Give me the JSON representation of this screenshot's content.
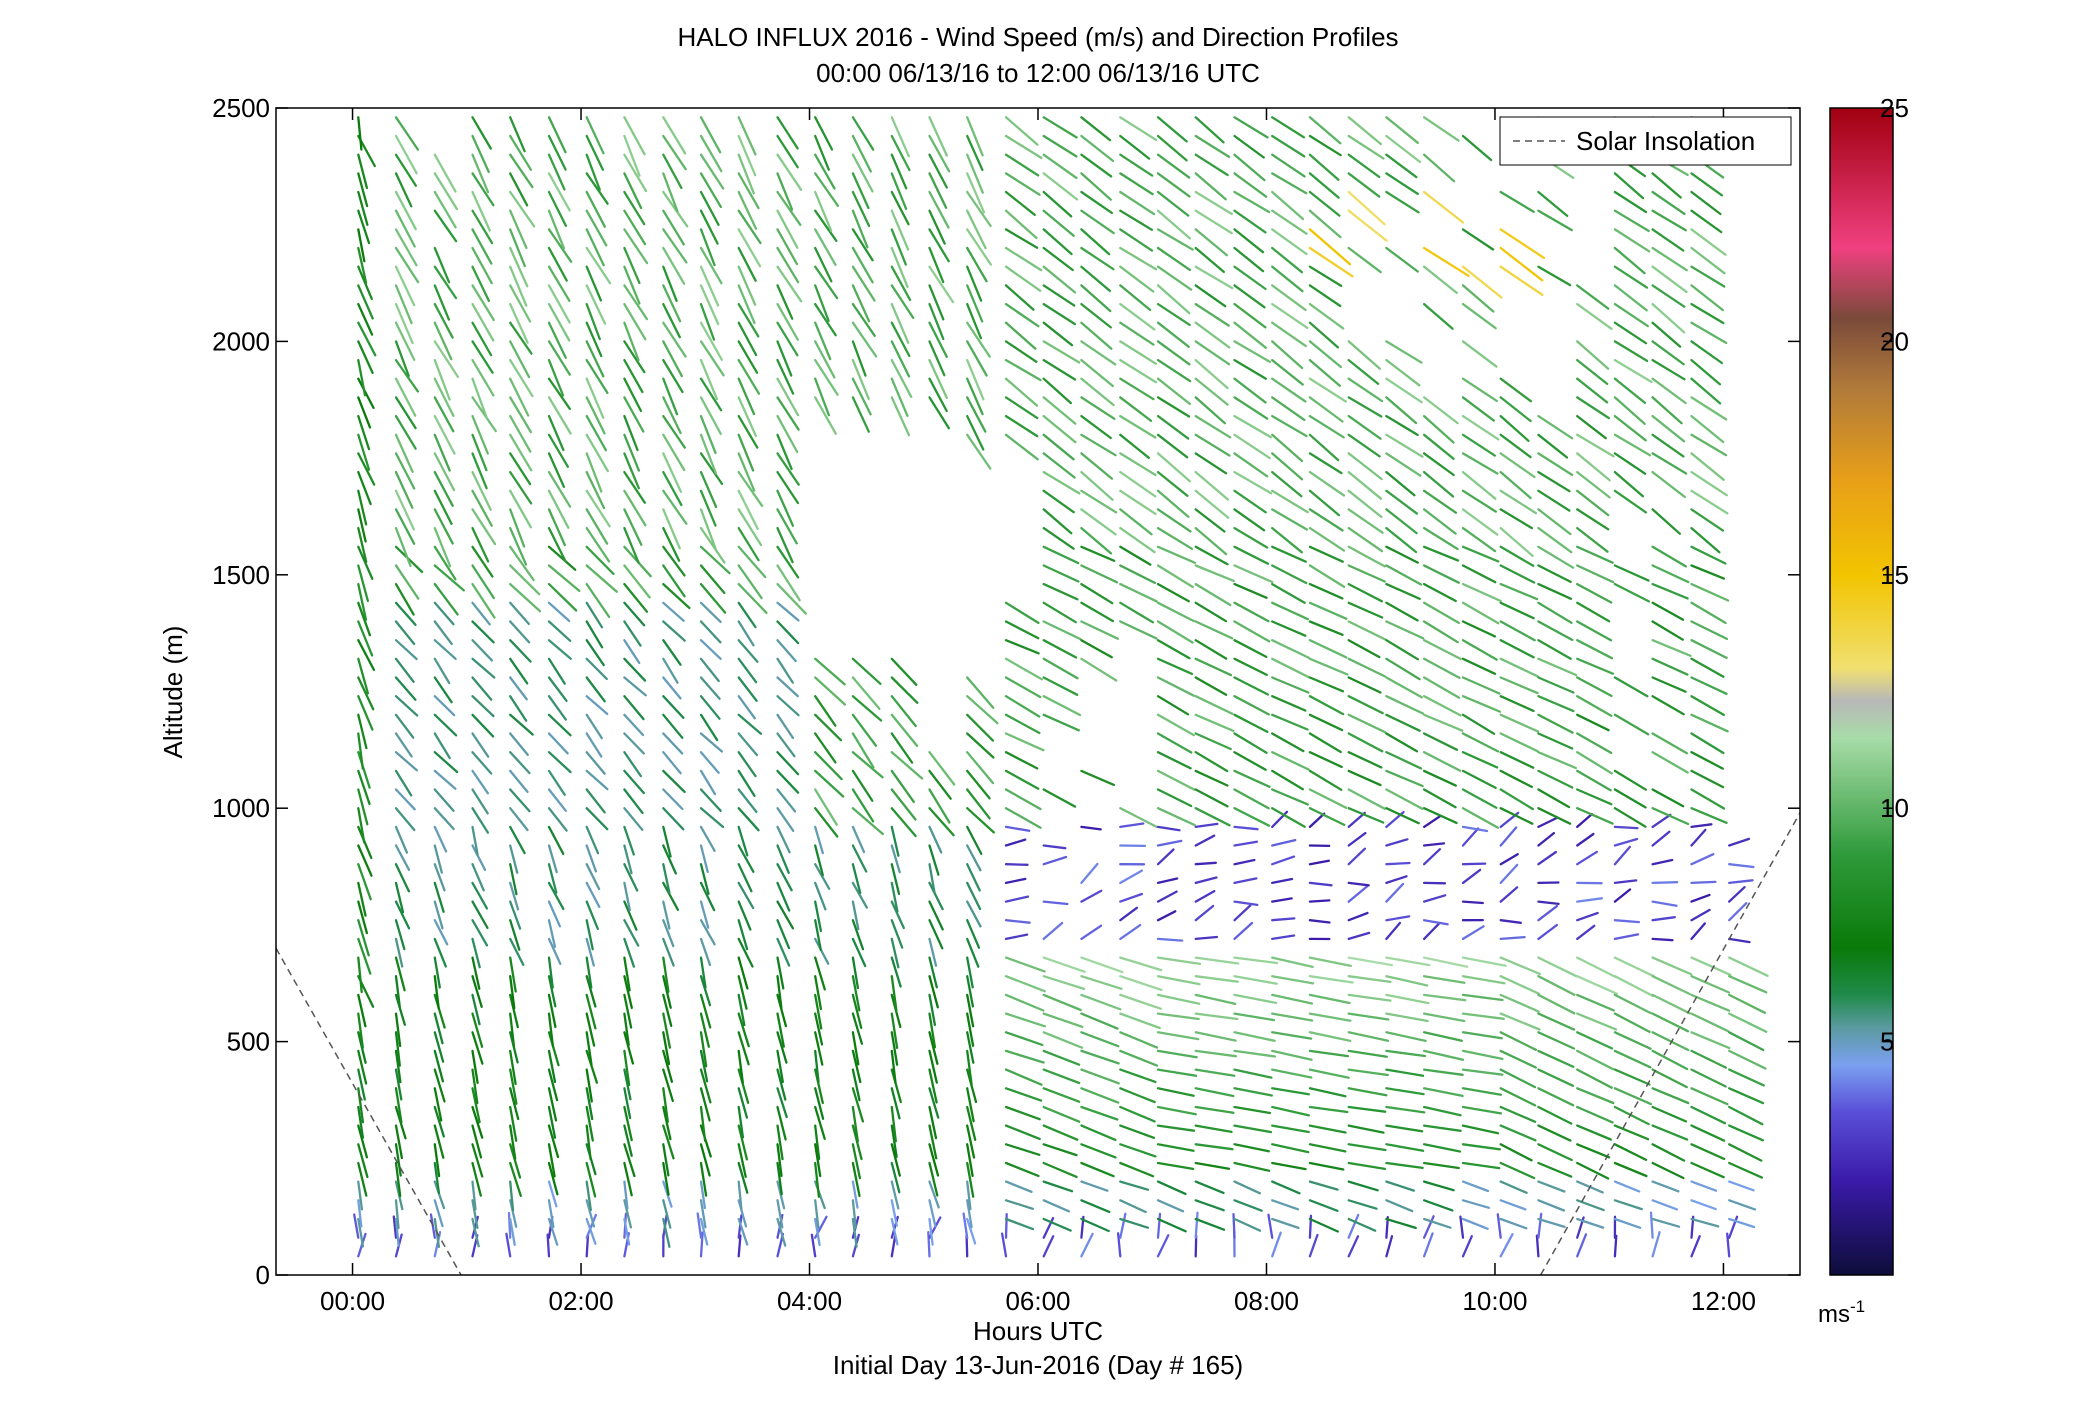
{
  "chart_data": {
    "type": "wind-barb",
    "title": "HALO INFLUX 2016 - Wind Speed (m/s) and Direction Profiles",
    "subtitle": "00:00 06/13/16 to 12:00 06/13/16  UTC",
    "xlabel": "Hours UTC",
    "xlabel2": "Initial Day 13-Jun-2016 (Day # 165)",
    "ylabel": "Altitude (m)",
    "xlim": [
      -0.67,
      12.67
    ],
    "ylim": [
      0,
      2500
    ],
    "x_ticks": [
      0,
      2,
      4,
      6,
      8,
      10,
      12
    ],
    "x_tick_labels": [
      "00:00",
      "02:00",
      "04:00",
      "06:00",
      "08:00",
      "10:00",
      "12:00"
    ],
    "y_ticks": [
      0,
      500,
      1000,
      1500,
      2000,
      2500
    ],
    "y_tick_labels": [
      "0",
      "500",
      "1000",
      "1500",
      "2000",
      "2500"
    ],
    "colorbar": {
      "min": 0,
      "max": 25,
      "ticks": [
        5,
        10,
        15,
        20,
        25
      ],
      "tick_labels": [
        "5",
        "10",
        "15",
        "20",
        "25"
      ],
      "unit_base": "ms",
      "unit_exp": "-1",
      "stops": [
        {
          "v": 0,
          "color": "#0d0d3a"
        },
        {
          "v": 2,
          "color": "#3a1aa8"
        },
        {
          "v": 3.5,
          "color": "#5a4fd8"
        },
        {
          "v": 4.5,
          "color": "#7aa0f0"
        },
        {
          "v": 5.3,
          "color": "#5b9aa0"
        },
        {
          "v": 6,
          "color": "#1f8a4a"
        },
        {
          "v": 7,
          "color": "#0a7a0a"
        },
        {
          "v": 9,
          "color": "#2e9a3a"
        },
        {
          "v": 11.5,
          "color": "#a8dca8"
        },
        {
          "v": 12.3,
          "color": "#b8b8b8"
        },
        {
          "v": 13,
          "color": "#f0e070"
        },
        {
          "v": 15,
          "color": "#f2c400"
        },
        {
          "v": 17,
          "color": "#e8a018"
        },
        {
          "v": 19,
          "color": "#b07a3a"
        },
        {
          "v": 20.5,
          "color": "#7a4a3a"
        },
        {
          "v": 22,
          "color": "#f04080"
        },
        {
          "v": 25,
          "color": "#a00010"
        }
      ]
    },
    "legend": {
      "label": "Solar Insolation",
      "placement": "top-right",
      "style": "dashed"
    },
    "solar_insolation": [
      {
        "x": [
          -0.67,
          0.95
        ],
        "y": [
          700,
          0
        ]
      },
      {
        "x": [
          10.4,
          12.67
        ],
        "y": [
          0,
          990
        ]
      }
    ],
    "series": [
      {
        "sample_interval_hours": 0.333,
        "note_vectors": "wind vectors: profile time (h UTC), altitude (m), speed (m/s)",
        "profiles": [
          {
            "t": 0.05,
            "top": 2500,
            "speed_low": 6.5,
            "speed_mid": 8.5
          },
          {
            "t": 0.38,
            "top": 2500,
            "speed_low": 6.5,
            "speed_mid": 8.5
          },
          {
            "t": 0.72,
            "top": 2450,
            "speed_low": 6.5,
            "speed_mid": 8.5
          },
          {
            "t": 1.05,
            "top": 2500,
            "speed_low": 6.0,
            "speed_mid": 8.5
          },
          {
            "t": 1.38,
            "top": 2500,
            "speed_low": 6.0,
            "speed_mid": 8.5
          },
          {
            "t": 1.72,
            "top": 2500,
            "speed_low": 6.0,
            "speed_mid": 8.3
          },
          {
            "t": 2.05,
            "top": 2500,
            "speed_low": 6.5,
            "speed_mid": 8.3
          },
          {
            "t": 2.38,
            "top": 2500,
            "speed_low": 6.5,
            "speed_mid": 8.3
          },
          {
            "t": 2.72,
            "top": 2500,
            "speed_low": 6.5,
            "speed_mid": 8.5
          },
          {
            "t": 3.05,
            "top": 2500,
            "speed_low": 6.8,
            "speed_mid": 8.5
          },
          {
            "t": 3.38,
            "top": 2500,
            "speed_low": 6.8,
            "speed_mid": 8.5
          },
          {
            "t": 3.72,
            "top": 2500,
            "speed_low": 6.8,
            "speed_mid": 8.5
          },
          {
            "t": 4.05,
            "top": 2500,
            "speed_low": 6.8,
            "speed_mid": 8.5
          },
          {
            "t": 4.38,
            "top": 2500,
            "speed_low": 6.8,
            "speed_mid": 8.5
          },
          {
            "t": 4.72,
            "top": 2500,
            "speed_low": 6.8,
            "speed_mid": 8.5
          },
          {
            "t": 5.05,
            "top": 2500,
            "speed_low": 6.8,
            "speed_mid": 8.8
          },
          {
            "t": 5.38,
            "top": 2500,
            "speed_low": 7.0,
            "speed_mid": 8.8
          },
          {
            "t": 5.72,
            "top": 2500,
            "speed_low": 7.0,
            "speed_mid": 8.8
          },
          {
            "t": 6.05,
            "top": 2500,
            "speed_low": 7.5,
            "speed_mid": 8.8
          },
          {
            "t": 6.38,
            "top": 2500,
            "speed_low": 7.5,
            "speed_mid": 9.0
          },
          {
            "t": 6.72,
            "top": 2500,
            "speed_low": 8.0,
            "speed_mid": 9.0
          },
          {
            "t": 7.05,
            "top": 2500,
            "speed_low": 8.0,
            "speed_mid": 9.0
          },
          {
            "t": 7.38,
            "top": 2500,
            "speed_low": 8.0,
            "speed_mid": 9.0
          },
          {
            "t": 7.72,
            "top": 2500,
            "speed_low": 8.0,
            "speed_mid": 9.0
          },
          {
            "t": 8.05,
            "top": 2500,
            "speed_low": 8.0,
            "speed_mid": 9.5
          },
          {
            "t": 8.38,
            "top": 2500,
            "speed_low": 8.0,
            "speed_mid": 9.5
          },
          {
            "t": 8.72,
            "top": 2500,
            "speed_low": 8.0,
            "speed_mid": 9.5
          },
          {
            "t": 9.05,
            "top": 2500,
            "speed_low": 8.0,
            "speed_mid": 10.0
          },
          {
            "t": 9.38,
            "top": 2500,
            "speed_low": 8.0,
            "speed_mid": 10.0
          },
          {
            "t": 9.72,
            "top": 2500,
            "speed_low": 7.5,
            "speed_mid": 10.5
          },
          {
            "t": 10.05,
            "top": 2500,
            "speed_low": 7.5,
            "speed_mid": 10.5
          },
          {
            "t": 10.38,
            "top": 2500,
            "speed_low": 7.0,
            "speed_mid": 10.5
          },
          {
            "t": 10.72,
            "top": 2500,
            "speed_low": 7.0,
            "speed_mid": 10.5
          },
          {
            "t": 11.05,
            "top": 2500,
            "speed_low": 7.0,
            "speed_mid": 10.5
          },
          {
            "t": 11.38,
            "top": 2500,
            "speed_low": 7.0,
            "speed_mid": 10.5
          },
          {
            "t": 11.72,
            "top": 2500,
            "speed_low": 7.0,
            "speed_mid": 10.5
          },
          {
            "t": 12.05,
            "top": 950,
            "speed_low": 7.0,
            "speed_mid": 10.5
          }
        ]
      }
    ],
    "grid": false
  }
}
